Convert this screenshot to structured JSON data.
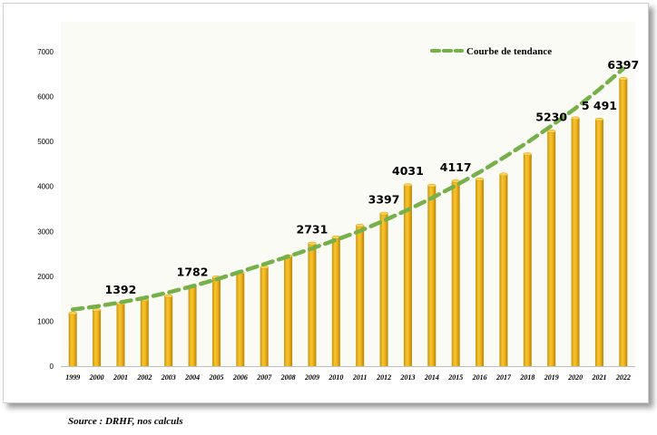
{
  "source_note": "Source : DRHF, nos calculs",
  "chart_data": {
    "type": "bar",
    "categories": [
      "1999",
      "2000",
      "2001",
      "2002",
      "2003",
      "2004",
      "2005",
      "2006",
      "2007",
      "2008",
      "2009",
      "2010",
      "2011",
      "2012",
      "2013",
      "2014",
      "2015",
      "2016",
      "2017",
      "2018",
      "2019",
      "2020",
      "2021",
      "2022"
    ],
    "values": [
      1180,
      1250,
      1392,
      1480,
      1560,
      1782,
      1980,
      2080,
      2200,
      2450,
      2731,
      2870,
      3130,
      3397,
      4031,
      4020,
      4117,
      4160,
      4270,
      4720,
      5230,
      5520,
      5491,
      6397
    ],
    "data_labels": [
      {
        "category": "2001",
        "text": "1392"
      },
      {
        "category": "2004",
        "text": "1782"
      },
      {
        "category": "2009",
        "text": "2731"
      },
      {
        "category": "2012",
        "text": "3397"
      },
      {
        "category": "2013",
        "text": "4031"
      },
      {
        "category": "2015",
        "text": "4117"
      },
      {
        "category": "2019",
        "text": "5230"
      },
      {
        "category": "2021",
        "text": "5 491"
      },
      {
        "category": "2022",
        "text": "6397"
      }
    ],
    "ylim": [
      0,
      7000
    ],
    "yticks": [
      "0",
      "1000",
      "2000",
      "3000",
      "4000",
      "5000",
      "6000",
      "7000"
    ],
    "grid": false,
    "trend": {
      "name": "Courbe de tendance",
      "style": "dashed",
      "values": [
        1260,
        1330,
        1420,
        1520,
        1640,
        1780,
        1930,
        2100,
        2270,
        2440,
        2620,
        2810,
        3010,
        3240,
        3480,
        3740,
        4020,
        4320,
        4640,
        4980,
        5350,
        5740,
        6160,
        6620
      ]
    },
    "legend_position": "top-right",
    "colors": {
      "bar": "#f2b61d",
      "bar_dark": "#c89106",
      "trend": "#76b04a"
    }
  }
}
